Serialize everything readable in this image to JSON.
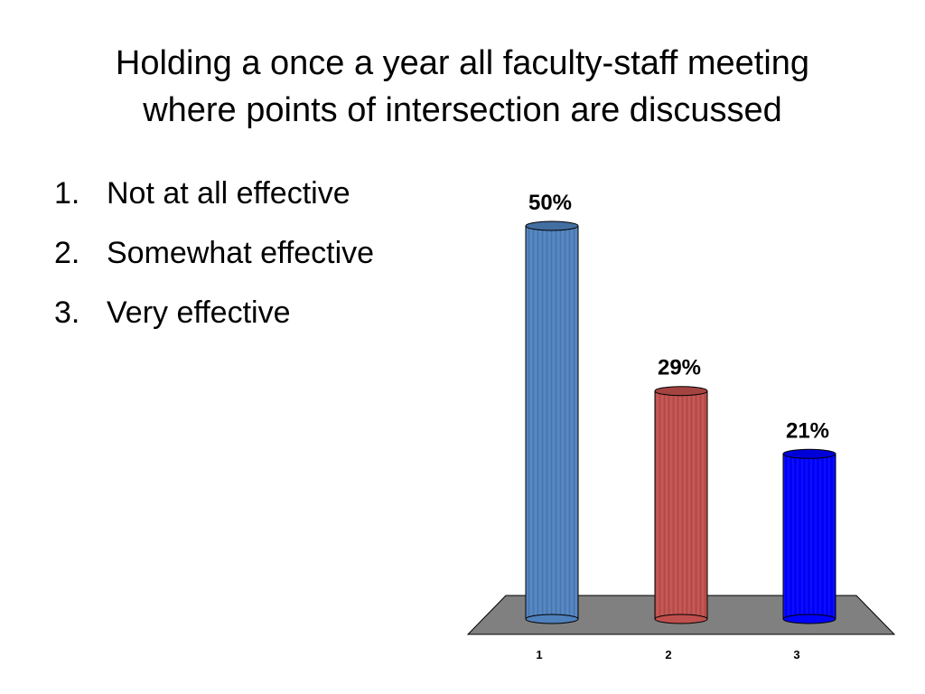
{
  "slide": {
    "title_lines": [
      "Holding a once a year all faculty-staff meeting",
      "where points of intersection are discussed"
    ]
  },
  "options": [
    {
      "number": "1.",
      "label": "Not at all effective"
    },
    {
      "number": "2.",
      "label": "Somewhat effective"
    },
    {
      "number": "3.",
      "label": "Very effective"
    }
  ],
  "chart_data": {
    "type": "bar",
    "title": "",
    "xlabel": "",
    "ylabel": "",
    "categories": [
      "1",
      "2",
      "3"
    ],
    "values": [
      50,
      29,
      21
    ],
    "data_labels": [
      "50%",
      "29%",
      "21%"
    ],
    "ylim": [
      0,
      50
    ],
    "grid": false,
    "legend": "none",
    "colors": [
      "#4F81BD",
      "#C0504D",
      "#0000FF"
    ],
    "floor_color": "#808080"
  }
}
